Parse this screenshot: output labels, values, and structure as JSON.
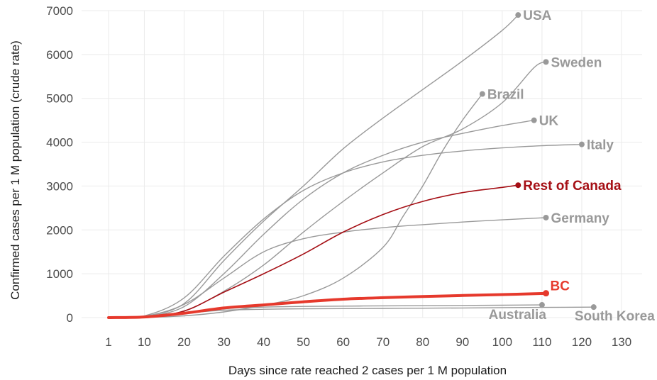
{
  "chart_data": {
    "type": "line",
    "title": "",
    "xlabel": "Days since rate reached 2 cases per 1 M population",
    "ylabel": "Confirmed cases per 1 M population (crude rate)",
    "xlim": [
      1,
      130
    ],
    "ylim": [
      0,
      7000
    ],
    "xticks": [
      1,
      10,
      20,
      30,
      40,
      50,
      60,
      70,
      80,
      90,
      100,
      110,
      120,
      130
    ],
    "yticks": [
      0,
      1000,
      2000,
      3000,
      4000,
      5000,
      6000,
      7000
    ],
    "grid": true,
    "legend": "none (series labeled at line ends)",
    "colors": {
      "comparison": "#999999",
      "rest_of_canada": "#a50f15",
      "bc": "#e6392c",
      "grid": "#ebebeb"
    },
    "series": [
      {
        "name": "USA",
        "color": "#999999",
        "width": 1.4,
        "points": [
          [
            1,
            0
          ],
          [
            10,
            30
          ],
          [
            20,
            320
          ],
          [
            30,
            1300
          ],
          [
            40,
            2200
          ],
          [
            50,
            3000
          ],
          [
            60,
            3850
          ],
          [
            70,
            4550
          ],
          [
            80,
            5200
          ],
          [
            90,
            5850
          ],
          [
            100,
            6550
          ],
          [
            104,
            6900
          ]
        ]
      },
      {
        "name": "Sweden",
        "color": "#999999",
        "width": 1.4,
        "points": [
          [
            1,
            0
          ],
          [
            10,
            15
          ],
          [
            20,
            150
          ],
          [
            30,
            600
          ],
          [
            40,
            1200
          ],
          [
            50,
            1950
          ],
          [
            60,
            2650
          ],
          [
            70,
            3300
          ],
          [
            80,
            3900
          ],
          [
            90,
            4300
          ],
          [
            100,
            4900
          ],
          [
            108,
            5700
          ],
          [
            111,
            5830
          ]
        ]
      },
      {
        "name": "Brazil",
        "color": "#999999",
        "width": 1.4,
        "points": [
          [
            1,
            0
          ],
          [
            10,
            5
          ],
          [
            20,
            40
          ],
          [
            30,
            130
          ],
          [
            40,
            280
          ],
          [
            50,
            500
          ],
          [
            60,
            900
          ],
          [
            70,
            1600
          ],
          [
            75,
            2300
          ],
          [
            80,
            3000
          ],
          [
            85,
            3800
          ],
          [
            90,
            4500
          ],
          [
            95,
            5100
          ]
        ]
      },
      {
        "name": "UK",
        "color": "#999999",
        "width": 1.4,
        "points": [
          [
            1,
            0
          ],
          [
            10,
            20
          ],
          [
            20,
            250
          ],
          [
            30,
            1000
          ],
          [
            40,
            1900
          ],
          [
            50,
            2700
          ],
          [
            60,
            3300
          ],
          [
            70,
            3700
          ],
          [
            80,
            4000
          ],
          [
            90,
            4200
          ],
          [
            100,
            4380
          ],
          [
            108,
            4500
          ]
        ]
      },
      {
        "name": "Italy",
        "color": "#999999",
        "width": 1.4,
        "points": [
          [
            1,
            0
          ],
          [
            10,
            40
          ],
          [
            20,
            450
          ],
          [
            30,
            1400
          ],
          [
            40,
            2250
          ],
          [
            50,
            2900
          ],
          [
            60,
            3300
          ],
          [
            70,
            3550
          ],
          [
            80,
            3700
          ],
          [
            90,
            3800
          ],
          [
            100,
            3870
          ],
          [
            110,
            3920
          ],
          [
            120,
            3950
          ]
        ]
      },
      {
        "name": "Germany",
        "color": "#999999",
        "width": 1.4,
        "points": [
          [
            1,
            0
          ],
          [
            10,
            30
          ],
          [
            20,
            300
          ],
          [
            30,
            900
          ],
          [
            40,
            1500
          ],
          [
            50,
            1800
          ],
          [
            60,
            1950
          ],
          [
            70,
            2050
          ],
          [
            80,
            2120
          ],
          [
            90,
            2180
          ],
          [
            100,
            2230
          ],
          [
            111,
            2280
          ]
        ]
      },
      {
        "name": "Australia",
        "color": "#999999",
        "width": 1.4,
        "points": [
          [
            1,
            0
          ],
          [
            10,
            10
          ],
          [
            20,
            90
          ],
          [
            30,
            200
          ],
          [
            40,
            240
          ],
          [
            50,
            255
          ],
          [
            60,
            262
          ],
          [
            70,
            268
          ],
          [
            80,
            272
          ],
          [
            90,
            278
          ],
          [
            100,
            283
          ],
          [
            110,
            290
          ]
        ]
      },
      {
        "name": "South Korea",
        "color": "#999999",
        "width": 1.4,
        "points": [
          [
            1,
            0
          ],
          [
            10,
            20
          ],
          [
            20,
            100
          ],
          [
            30,
            170
          ],
          [
            40,
            190
          ],
          [
            50,
            200
          ],
          [
            60,
            205
          ],
          [
            70,
            210
          ],
          [
            80,
            215
          ],
          [
            90,
            220
          ],
          [
            100,
            228
          ],
          [
            110,
            233
          ],
          [
            123,
            240
          ]
        ]
      },
      {
        "name": "Rest of Canada",
        "color": "#a50f15",
        "width": 1.6,
        "points": [
          [
            1,
            0
          ],
          [
            10,
            15
          ],
          [
            20,
            150
          ],
          [
            30,
            580
          ],
          [
            40,
            1000
          ],
          [
            50,
            1450
          ],
          [
            60,
            1950
          ],
          [
            70,
            2350
          ],
          [
            80,
            2650
          ],
          [
            90,
            2850
          ],
          [
            100,
            2970
          ],
          [
            104,
            3020
          ]
        ]
      },
      {
        "name": "BC",
        "color": "#e6392c",
        "width": 4,
        "points": [
          [
            1,
            0
          ],
          [
            10,
            15
          ],
          [
            20,
            100
          ],
          [
            30,
            220
          ],
          [
            40,
            290
          ],
          [
            50,
            360
          ],
          [
            60,
            420
          ],
          [
            70,
            455
          ],
          [
            80,
            480
          ],
          [
            90,
            505
          ],
          [
            100,
            525
          ],
          [
            110,
            550
          ],
          [
            111,
            555
          ]
        ]
      }
    ]
  }
}
